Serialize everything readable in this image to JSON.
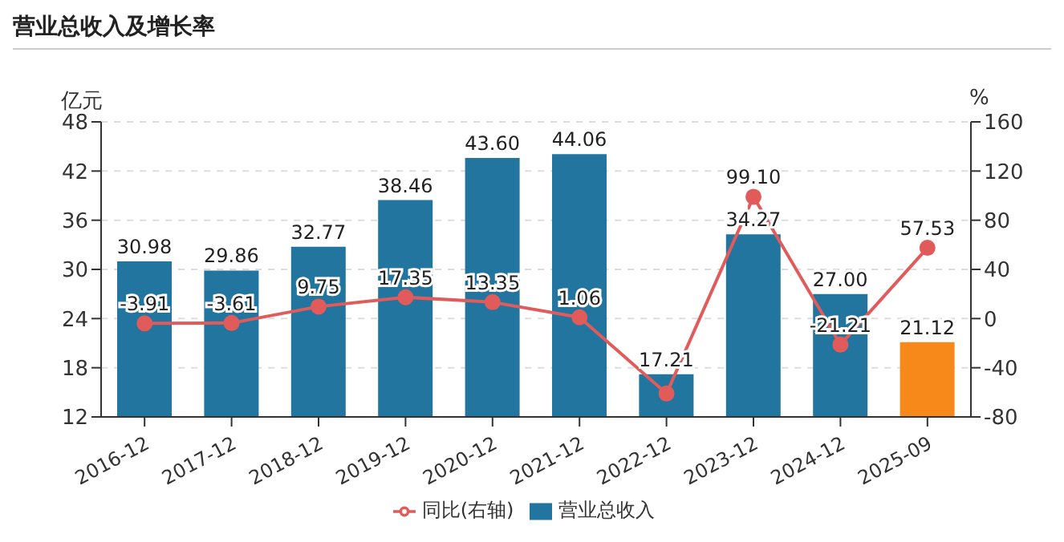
{
  "chart_data": {
    "type": "bar",
    "title": "营业总收入及增长率",
    "ylabel": "亿元",
    "y2label": "%",
    "categories": [
      "2016-12",
      "2017-12",
      "2018-12",
      "2019-12",
      "2020-12",
      "2021-12",
      "2022-12",
      "2023-12",
      "2024-12",
      "2025-09"
    ],
    "series": [
      {
        "name": "营业总收入",
        "color": "#21759f",
        "colors": [
          "#21759f",
          "#21759f",
          "#21759f",
          "#21759f",
          "#21759f",
          "#21759f",
          "#21759f",
          "#21759f",
          "#21759f",
          "#f7891a"
        ],
        "values": [
          30.98,
          29.86,
          32.77,
          38.46,
          43.6,
          44.06,
          17.21,
          34.27,
          27.0,
          21.12
        ],
        "value_labels": [
          "30.98",
          "29.86",
          "32.77",
          "38.46",
          "43.60",
          "44.06",
          "17.21",
          "34.27",
          "27.00",
          "21.12"
        ]
      },
      {
        "name": "同比(右轴)",
        "type": "line",
        "axis": "y2",
        "color": "#e15b5b",
        "values": [
          -3.91,
          -3.61,
          9.75,
          17.35,
          13.35,
          1.06,
          -61,
          99.1,
          -21.21,
          57.53
        ],
        "value_labels": [
          "-3.91",
          "-3.61",
          "9.75",
          "17.35",
          "13.35",
          "1.06",
          null,
          "99.10",
          "-21.21",
          "57.53"
        ]
      }
    ],
    "ylim": [
      12,
      48
    ],
    "yticks": [
      12,
      18,
      24,
      30,
      36,
      42,
      48
    ],
    "y2lim": [
      -80,
      160
    ],
    "y2ticks": [
      -80,
      -40,
      0,
      40,
      80,
      120,
      160
    ],
    "grid": "y",
    "legend": "bottom",
    "marker": "circle",
    "line_style": "solid"
  }
}
